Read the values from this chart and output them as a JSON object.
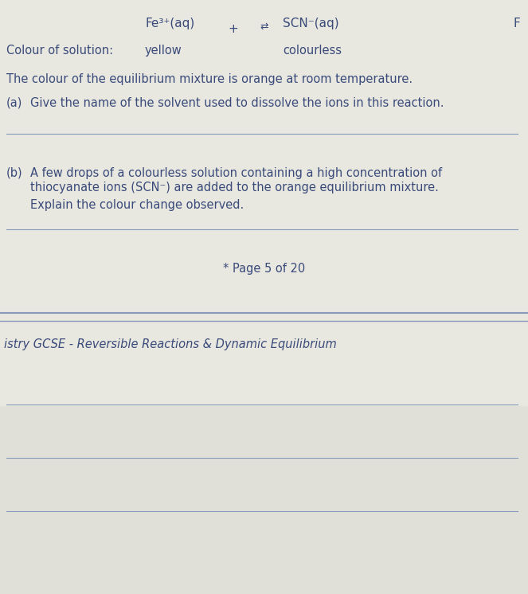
{
  "bg_color_top": "#e8e8e0",
  "bg_color_bottom": "#e0e0d8",
  "sep_line_color": "#8899bb",
  "text_color": "#3a4a7a",
  "line_color": "#8899bb",
  "fe_text": "Fe³⁺(aq)",
  "plus_text": "+",
  "scn_text": "SCN⁻(aq)",
  "arrow_text": "⇄",
  "far_right": "F",
  "colour_label": "Colour of solution:",
  "colour_fe": "yellow",
  "colour_scn": "colourless",
  "line_eq": "The colour of the equilibrium mixture is orange at room temperature.",
  "qa_label": "(a)",
  "qa_text": "Give the name of the solvent used to dissolve the ions in this reaction.",
  "qb_label": "(b)",
  "qb_text1": "A few drops of a colourless solution containing a high concentration of",
  "qb_text2": "thiocyanate ions (SCN⁻) are added to the orange equilibrium mixture.",
  "qb_text3": "Explain the colour change observed.",
  "page_text": "* Page 5 of 20",
  "footer_text": "istry GCSE - Reversible Reactions & Dynamic Equilibrium",
  "fig_width": 6.63,
  "fig_height": 7.46,
  "dpi": 100
}
